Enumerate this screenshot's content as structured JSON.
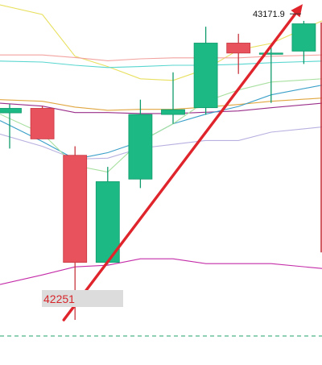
{
  "chart_data": {
    "type": "candlestick",
    "title": "",
    "xlabel": "",
    "ylabel": "",
    "ylim": [
      42180,
      43215
    ],
    "grid": false,
    "colors": {
      "up": "#1db985",
      "up_border": "#0f9a6c",
      "down": "#e8525c",
      "down_border": "#c83640",
      "arrow": "#e0242c",
      "low_label_text": "#d7262b",
      "low_label_bg": "#dcdcdc",
      "dashed_line": "#22a06b"
    },
    "candles": [
      {
        "open": 42864,
        "high": 42891,
        "low": 42753,
        "close": 42878
      },
      {
        "open": 42878,
        "high": 42885,
        "low": 42792,
        "close": 42783
      },
      {
        "open": 42732,
        "high": 42760,
        "low": 42220,
        "close": 42399
      },
      {
        "open": 42399,
        "high": 42696,
        "low": 42392,
        "close": 42650
      },
      {
        "open": 42658,
        "high": 42905,
        "low": 42630,
        "close": 42859
      },
      {
        "open": 42859,
        "high": 42990,
        "low": 42830,
        "close": 42874
      },
      {
        "open": 42880,
        "high": 43132,
        "low": 42858,
        "close": 43081
      },
      {
        "open": 43081,
        "high": 43110,
        "low": 42985,
        "close": 43050
      },
      {
        "open": 43050,
        "high": 43067,
        "low": 42895,
        "close": 43050
      },
      {
        "open": 43056,
        "high": 43150,
        "low": 43016,
        "close": 43141
      }
    ],
    "overlay_lines": [
      {
        "color": "#e8e060",
        "values": [
          43200,
          43170,
          43040,
          43008,
          42970,
          42965,
          43000,
          43060,
          43080,
          43150
        ]
      },
      {
        "color": "#f2a3a0",
        "values": [
          43044,
          43044,
          43036,
          43026,
          43032,
          43035,
          43035,
          43035,
          43040,
          43044
        ]
      },
      {
        "color": "#58d6cf",
        "values": [
          43025,
          43022,
          43012,
          43005,
          43008,
          43012,
          43012,
          43015,
          43020,
          43025
        ]
      },
      {
        "color": "#e0a640",
        "values": [
          42905,
          42900,
          42882,
          42872,
          42875,
          42875,
          42882,
          42890,
          42900,
          42910
        ]
      },
      {
        "color": "#9a2e8a",
        "values": [
          42894,
          42885,
          42865,
          42865,
          42862,
          42862,
          42866,
          42870,
          42880,
          42894
        ]
      },
      {
        "color": "#b8b0e0",
        "values": [
          42798,
          42760,
          42720,
          42723,
          42754,
          42766,
          42778,
          42778,
          42804,
          42820
        ]
      },
      {
        "color": "#3a9fc9",
        "values": [
          42840,
          42775,
          42720,
          42740,
          42775,
          42830,
          42860,
          42884,
          42920,
          42950
        ]
      },
      {
        "color": "#a8e0a0",
        "values": [
          42860,
          42800,
          42700,
          42680,
          42775,
          42830,
          42900,
          42935,
          42960,
          42970
        ]
      },
      {
        "color": "#c42ca8",
        "values": [
          42330,
          42360,
          42385,
          42390,
          42410,
          42410,
          42395,
          42395,
          42395,
          42380
        ]
      }
    ],
    "dashed_level": 42170,
    "high_label": "43171.9",
    "low_label": "42251"
  }
}
